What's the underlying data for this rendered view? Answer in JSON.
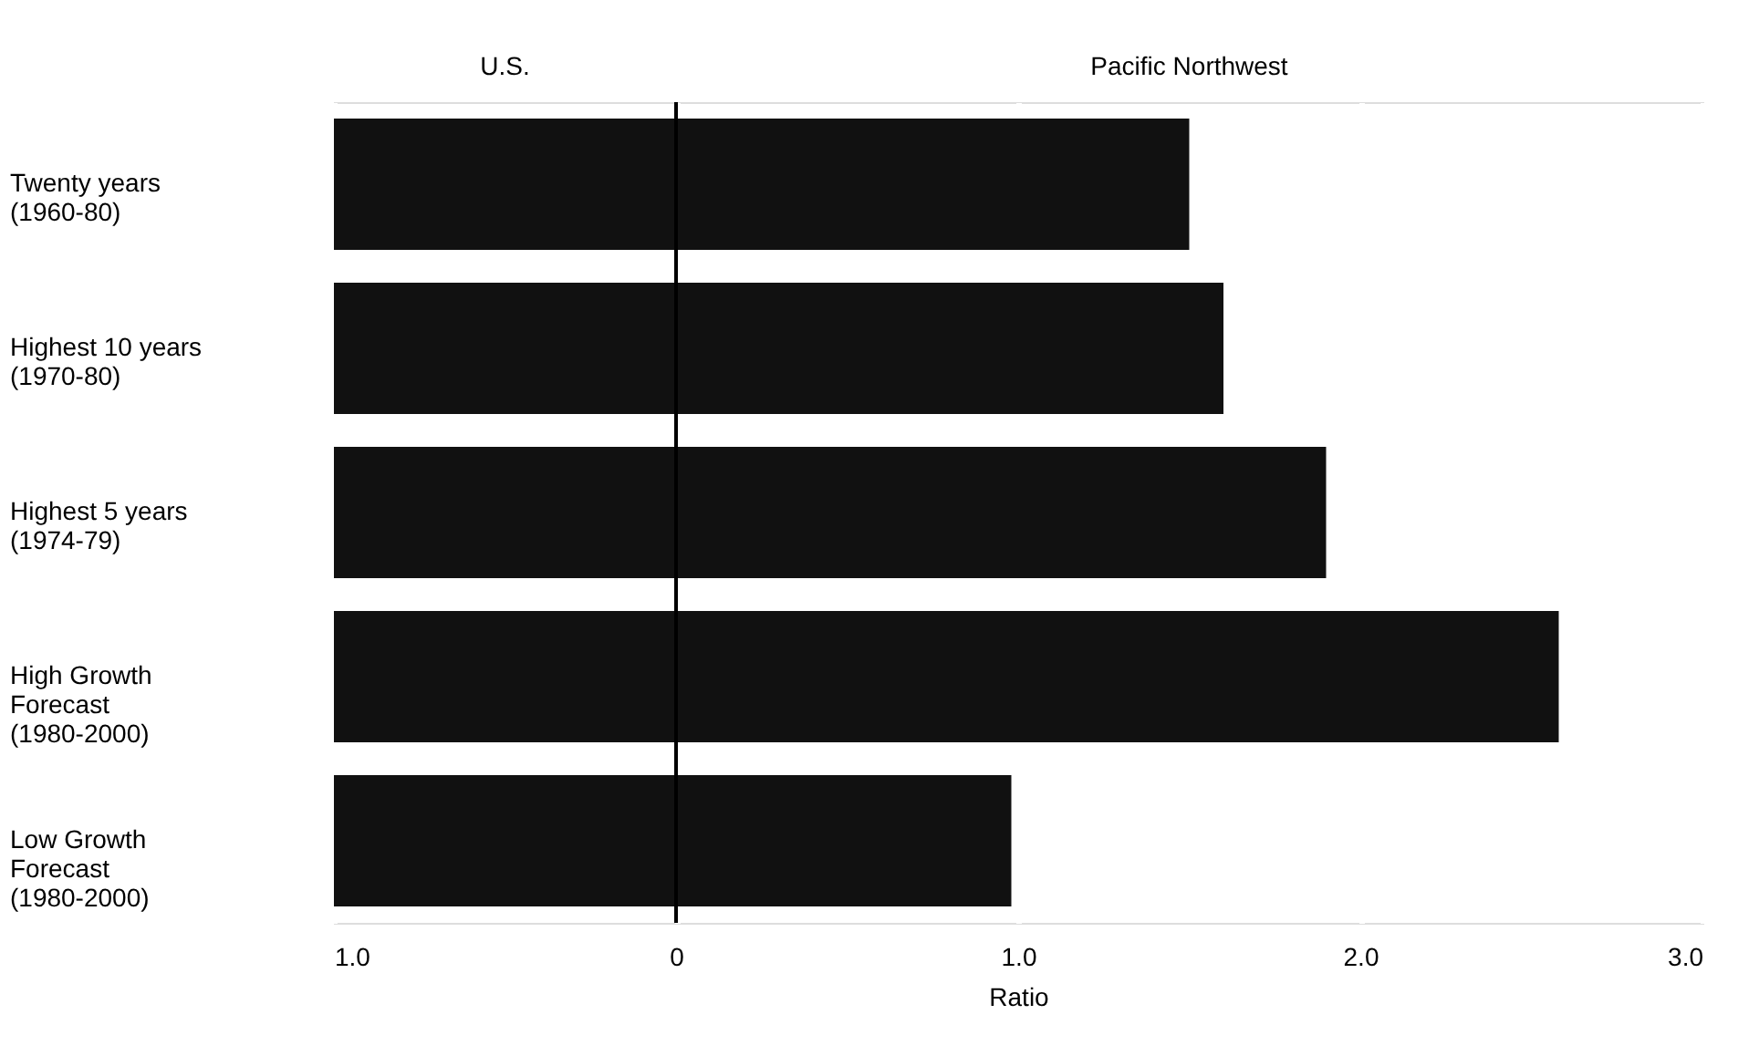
{
  "chart_data": {
    "type": "bar",
    "orientation": "horizontal",
    "xlabel": "Ratio",
    "categories": [
      "Twenty years\n(1960-80)",
      "Highest 10 years\n(1970-80)",
      "Highest 5 years\n(1974-79)",
      "High Growth\nForecast\n(1980-2000)",
      "Low Growth\nForecast\n(1980-2000)"
    ],
    "values": [
      2.5,
      2.6,
      2.9,
      3.58,
      1.98
    ],
    "base": [
      -1,
      -1,
      -1,
      -1,
      -1
    ],
    "color": "#111111",
    "xlim": [
      -1,
      3
    ],
    "xticks": [
      {
        "value": -1,
        "label": "1.0"
      },
      0,
      {
        "value": 1,
        "label": "1.0"
      },
      {
        "value": 2,
        "label": "2.0"
      },
      {
        "value": 3,
        "label": "3.0"
      }
    ],
    "grid": "x",
    "ref_lines": [
      {
        "axis": "x",
        "value": 0,
        "color": "#000000"
      }
    ],
    "annotations": [
      "U.S.",
      "Pacific Northwest"
    ]
  }
}
